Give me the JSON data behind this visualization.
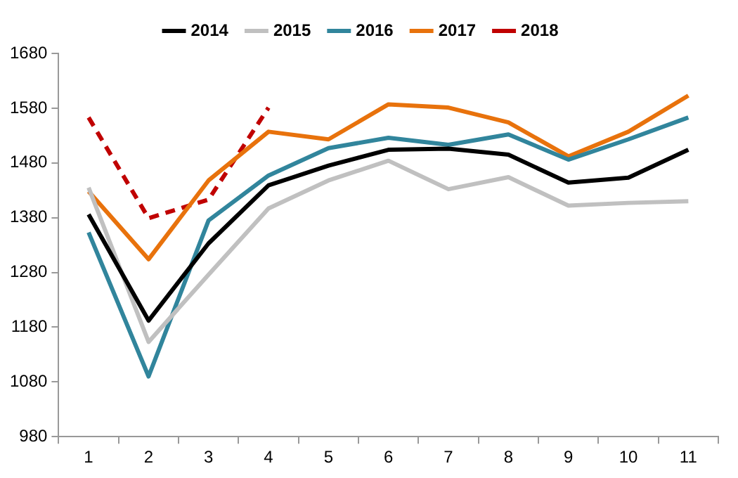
{
  "chart_data": {
    "type": "line",
    "categories": [
      "1",
      "2",
      "3",
      "4",
      "5",
      "6",
      "7",
      "8",
      "9",
      "10",
      "11"
    ],
    "series": [
      {
        "name": "2014",
        "color": "#000000",
        "values": [
          1386,
          1192,
          1333,
          1439,
          1475,
          1504,
          1506,
          1495,
          1444,
          1453,
          1504
        ]
      },
      {
        "name": "2015",
        "color": "#c0c0c0",
        "values": [
          1435,
          1153,
          1276,
          1397,
          1448,
          1484,
          1432,
          1454,
          1402,
          1407,
          1410
        ]
      },
      {
        "name": "2016",
        "color": "#31859c",
        "values": [
          1353,
          1090,
          1375,
          1457,
          1507,
          1526,
          1513,
          1532,
          1486,
          1523,
          1563
        ]
      },
      {
        "name": "2017",
        "color": "#e8720c",
        "values": [
          1428,
          1304,
          1448,
          1537,
          1523,
          1587,
          1581,
          1554,
          1492,
          1537,
          1603
        ]
      },
      {
        "name": "2018",
        "color": "#c00000",
        "line_style": "dashed",
        "values": [
          1563,
          1379,
          1413,
          1581,
          null,
          null,
          null,
          null,
          null,
          null,
          null
        ]
      }
    ],
    "ylim": [
      980,
      1680
    ],
    "yticks": [
      980,
      1080,
      1180,
      1280,
      1380,
      1480,
      1580,
      1680
    ],
    "grid": false,
    "legend": "top",
    "marker": "none",
    "line_style": "solid"
  }
}
